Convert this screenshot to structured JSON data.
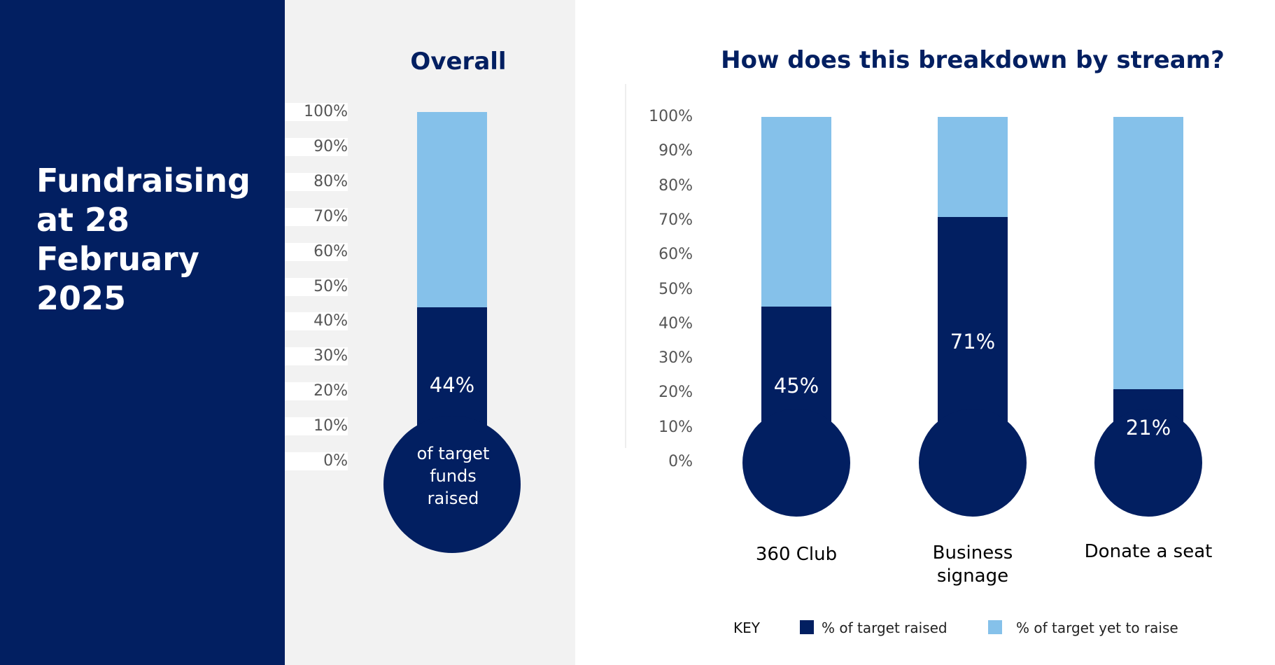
{
  "page": {
    "title": "Fundraising at 28 February 2025"
  },
  "colors": {
    "navy": "#021f61",
    "light_blue": "#85c1ea",
    "panel_grey": "#f2f2f2"
  },
  "overall": {
    "title": "Overall",
    "bulb_text": "of target funds raised"
  },
  "breakdown": {
    "title": "How does this breakdown by stream?"
  },
  "key": {
    "label": "KEY",
    "raised": "% of target raised",
    "yet_to_raise": "% of target yet to raise"
  },
  "chart_data": [
    {
      "type": "bar",
      "title": "Overall",
      "categories": [
        ""
      ],
      "series": [
        {
          "name": "% of target raised",
          "values": [
            44
          ]
        },
        {
          "name": "% of target yet to raise",
          "values": [
            56
          ]
        }
      ],
      "data_labels": [
        "44%"
      ],
      "y_ticks": [
        "100%",
        "90%",
        "80%",
        "70%",
        "60%",
        "50%",
        "40%",
        "30%",
        "20%",
        "10%",
        "0%"
      ],
      "ylim": [
        0,
        100
      ],
      "grid": false
    },
    {
      "type": "bar",
      "title": "How does this breakdown by stream?",
      "categories": [
        "360 Club",
        "Business signage",
        "Donate a seat"
      ],
      "series": [
        {
          "name": "% of target raised",
          "values": [
            45,
            71,
            21
          ]
        },
        {
          "name": "% of target yet to raise",
          "values": [
            55,
            29,
            79
          ]
        }
      ],
      "data_labels": [
        "45%",
        "71%",
        "21%"
      ],
      "y_ticks": [
        "100%",
        "90%",
        "80%",
        "70%",
        "60%",
        "50%",
        "40%",
        "30%",
        "20%",
        "10%",
        "0%"
      ],
      "ylim": [
        0,
        100
      ],
      "grid": false,
      "legend": "bottom"
    }
  ]
}
